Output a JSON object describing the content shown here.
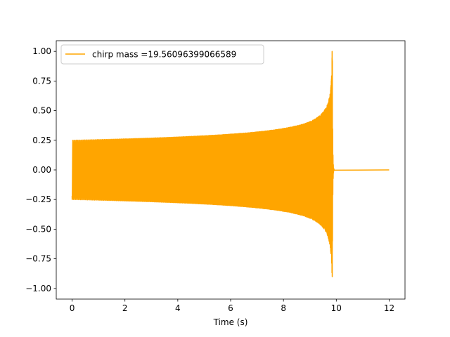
{
  "chart_data": {
    "type": "line",
    "title": "",
    "xlabel": "Time (s)",
    "ylabel": "",
    "xlim": [
      -0.6,
      12.6
    ],
    "ylim": [
      -1.09,
      1.09
    ],
    "xticks": [
      0,
      2,
      4,
      6,
      8,
      10,
      12
    ],
    "xtick_labels": [
      "0",
      "2",
      "4",
      "6",
      "8",
      "10",
      "12"
    ],
    "yticks": [
      -1.0,
      -0.75,
      -0.5,
      -0.25,
      0.0,
      0.25,
      0.5,
      0.75,
      1.0
    ],
    "ytick_labels": [
      "−1.00",
      "−0.75",
      "−0.50",
      "−0.25",
      "0.00",
      "0.25",
      "0.50",
      "0.75",
      "1.00"
    ],
    "grid": false,
    "legend_position": "upper-left",
    "series": [
      {
        "name": "chirp mass =19.56096399066589",
        "color": "#ffa500",
        "x_range": [
          0,
          12
        ],
        "merger_time": 9.85,
        "initial_amplitude": 0.25,
        "peak_amplitude": 1.0,
        "ringdown_end": 9.92,
        "signal": "chirp waveform: oscillation with amplitude growing from about 0.25 at t=0 to 1.0 near t=9.85 s, followed by a flat 0.0 from about 9.92 s to 12 s"
      }
    ]
  }
}
